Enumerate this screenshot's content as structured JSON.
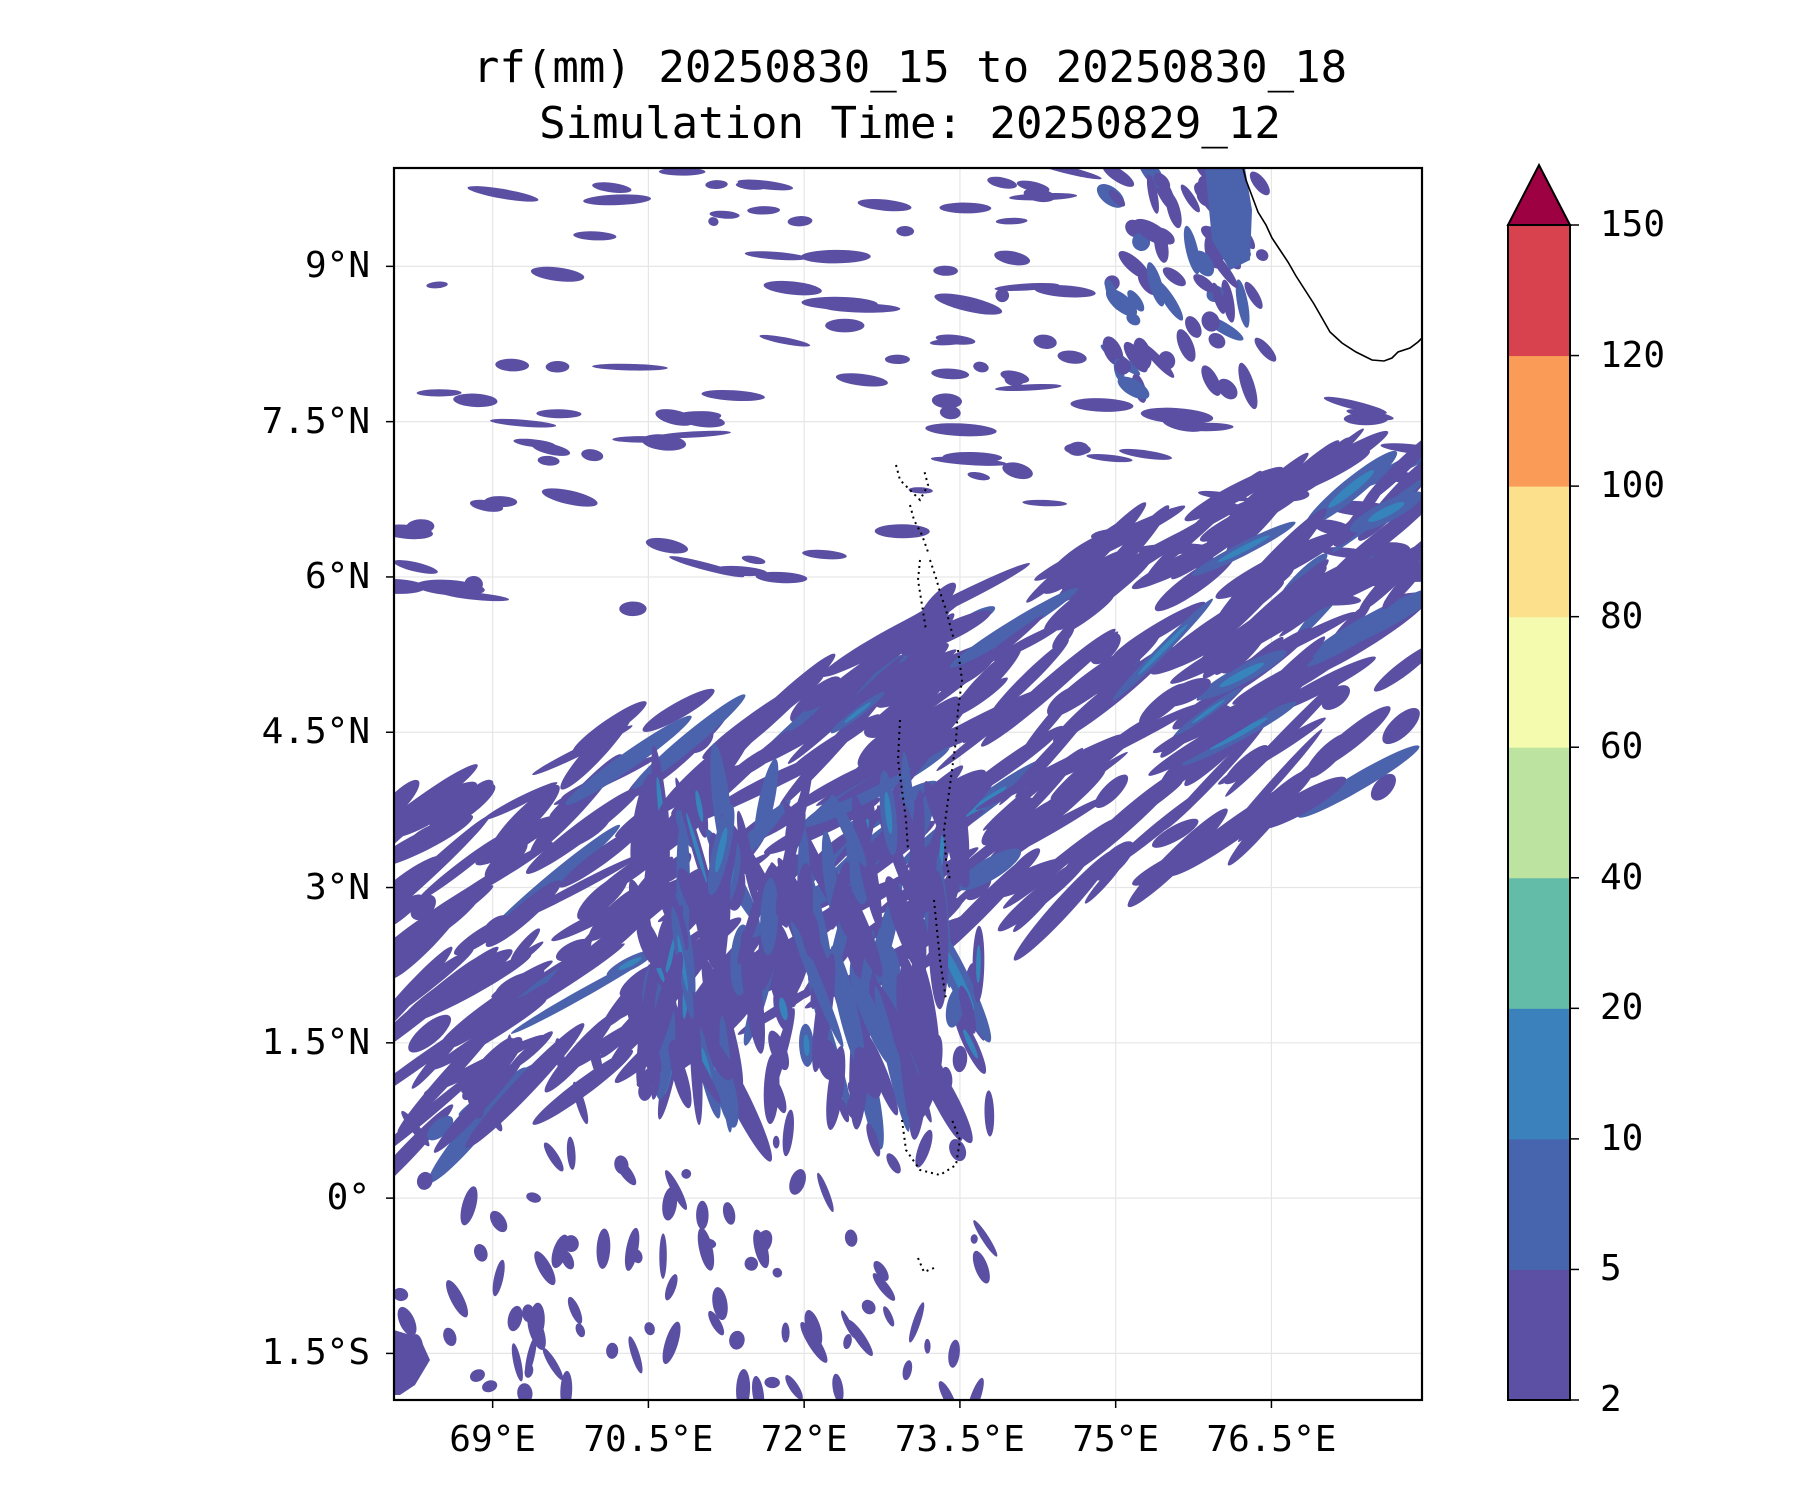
{
  "title": {
    "line1": "rf(mm) 20250830_15 to 20250830_18",
    "line2": "Simulation Time: 20250829_12"
  },
  "map": {
    "lon_range": [
      68.05,
      77.95
    ],
    "lat_range": [
      -1.95,
      9.95
    ],
    "lon_ticks": [
      "69°E",
      "70.5°E",
      "72°E",
      "73.5°E",
      "75°E",
      "76.5°E"
    ],
    "lat_ticks": [
      "9°N",
      "7.5°N",
      "6°N",
      "4.5°N",
      "3°N",
      "1.5°N",
      "0°",
      "1.5°S"
    ],
    "gridlines": true,
    "fill_color_primary": "#5a4fa2",
    "fill_color_secondary": "#4b62ad",
    "fill_color_peak": "#3783bb",
    "coastline_color": "#000000"
  },
  "colorbar": {
    "levels": [
      "2",
      "5",
      "10",
      "20",
      "40",
      "60",
      "80",
      "100",
      "120",
      "150"
    ],
    "colors": [
      "#5b50a3",
      "#4765af",
      "#3b82bd",
      "#62bca8",
      "#bde3a0",
      "#f4fbaf",
      "#fde08c",
      "#fa9c58",
      "#d8414e"
    ],
    "extend_color": "#9e0142",
    "extend": "max"
  }
}
